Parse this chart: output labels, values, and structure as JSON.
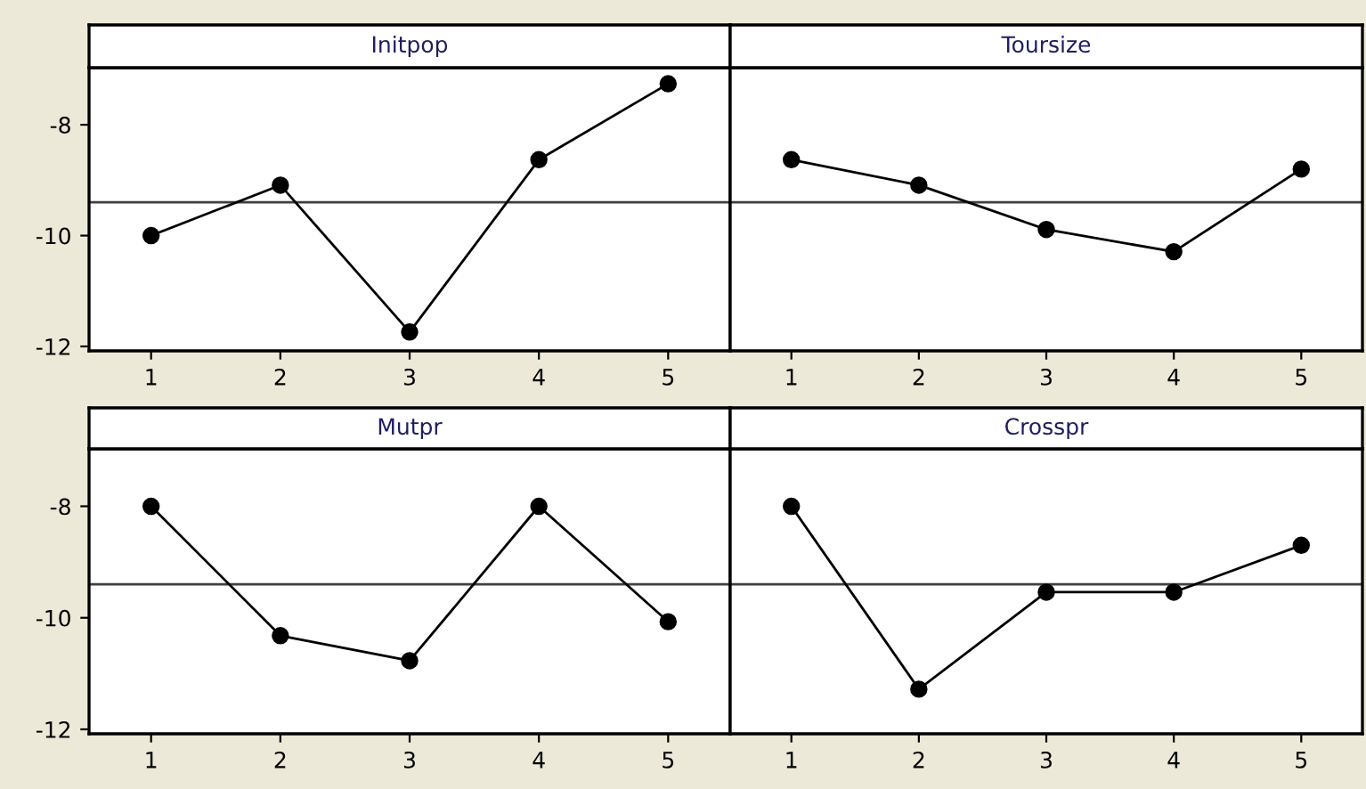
{
  "chart_data": [
    {
      "type": "line",
      "title": "Initpop",
      "categories": [
        "1",
        "2",
        "3",
        "4",
        "5"
      ],
      "values": [
        -10.0,
        -9.09,
        -11.74,
        -8.63,
        -7.26
      ],
      "color": "#000000",
      "marker": "circle",
      "ylim": [
        -12.08,
        -6.97
      ],
      "yticks": [
        -12,
        -10,
        -8
      ],
      "ref_lines": [
        {
          "axis": "y",
          "value": -9.4,
          "color": "#404040"
        }
      ],
      "grid": false
    },
    {
      "type": "line",
      "title": "Toursize",
      "categories": [
        "1",
        "2",
        "3",
        "4",
        "5"
      ],
      "values": [
        -8.63,
        -9.09,
        -9.89,
        -10.29,
        -8.8
      ],
      "color": "#000000",
      "marker": "circle",
      "ylim": [
        -12.08,
        -6.97
      ],
      "tick_labels": "x",
      "ref_lines": [
        {
          "axis": "y",
          "value": -9.4,
          "color": "#404040"
        }
      ],
      "grid": false
    },
    {
      "type": "line",
      "title": "Mutpr",
      "categories": [
        "1",
        "2",
        "3",
        "4",
        "5"
      ],
      "values": [
        -8.0,
        -10.32,
        -10.77,
        -8.0,
        -10.07
      ],
      "color": "#000000",
      "marker": "circle",
      "ylim": [
        -12.08,
        -6.97
      ],
      "yticks": [
        -12,
        -10,
        -8
      ],
      "ref_lines": [
        {
          "axis": "y",
          "value": -9.4,
          "color": "#404040"
        }
      ],
      "grid": false
    },
    {
      "type": "line",
      "title": "Crosspr",
      "categories": [
        "1",
        "2",
        "3",
        "4",
        "5"
      ],
      "values": [
        -8.0,
        -11.28,
        -9.54,
        -9.54,
        -8.7
      ],
      "color": "#000000",
      "marker": "circle",
      "ylim": [
        -12.08,
        -6.97
      ],
      "tick_labels": "x",
      "ref_lines": [
        {
          "axis": "y",
          "value": -9.4,
          "color": "#404040"
        }
      ],
      "grid": false
    }
  ]
}
